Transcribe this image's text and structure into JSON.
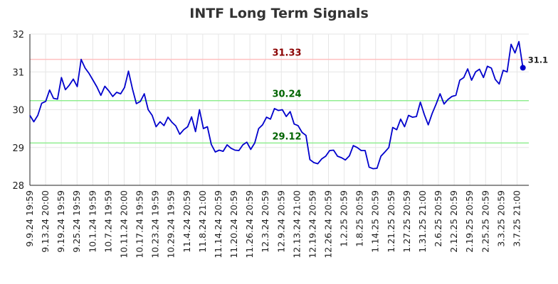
{
  "chart_data": {
    "type": "line",
    "title": "INTF Long Term Signals",
    "xlabel": "",
    "ylabel": "",
    "ylim": [
      28,
      32
    ],
    "y_ticks": [
      28,
      29,
      30,
      31,
      32
    ],
    "grid": true,
    "x_tick_labels": [
      "9.9.24 19:59",
      "9.13.24 20:00",
      "9.19.24 19:59",
      "9.25.24 19:59",
      "10.1.24 19:59",
      "10.7.24 19:59",
      "10.11.24 20:00",
      "10.17.24 19:59",
      "10.23.24 19:59",
      "10.29.24 19:59",
      "11.4.24 20:59",
      "11.8.24 21:00",
      "11.14.24 20:59",
      "11.20.24 20:59",
      "11.26.24 20:59",
      "12.3.24 20:59",
      "12.9.24 20:59",
      "12.13.24 21:00",
      "12.19.24 20:59",
      "12.26.24 20:59",
      "1.2.25 20:59",
      "1.8.25 20:59",
      "1.14.25 20:59",
      "1.21.25 20:59",
      "1.27.25 20:59",
      "1.31.25 21:00",
      "2.6.25 20:59",
      "2.12.25 20:59",
      "2.19.25 20:59",
      "2.25.25 20:59",
      "3.3.25 20:59",
      "3.7.25 21:00"
    ],
    "series": [
      {
        "values": [
          29.85,
          29.68,
          29.85,
          30.17,
          30.22,
          30.52,
          30.3,
          30.28,
          30.85,
          30.53,
          30.65,
          30.81,
          30.61,
          31.33,
          31.1,
          30.96,
          30.78,
          30.6,
          30.38,
          30.62,
          30.5,
          30.35,
          30.46,
          30.42,
          30.59,
          31.02,
          30.55,
          30.16,
          30.22,
          30.42,
          30.0,
          29.85,
          29.55,
          29.68,
          29.58,
          29.8,
          29.67,
          29.57,
          29.35,
          29.47,
          29.55,
          29.81,
          29.42,
          30.0,
          29.5,
          29.55,
          29.08,
          28.88,
          28.93,
          28.9,
          29.07,
          28.98,
          28.93,
          28.92,
          29.07,
          29.14,
          28.95,
          29.12,
          29.5,
          29.6,
          29.8,
          29.75,
          30.03,
          29.98,
          30.0,
          29.82,
          29.95,
          29.62,
          29.58,
          29.4,
          29.32,
          28.68,
          28.6,
          28.57,
          28.7,
          28.77,
          28.92,
          28.93,
          28.77,
          28.73,
          28.67,
          28.78,
          29.05,
          29.0,
          28.92,
          28.92,
          28.48,
          28.44,
          28.45,
          28.77,
          28.88,
          29.0,
          29.53,
          29.47,
          29.75,
          29.55,
          29.85,
          29.8,
          29.82,
          30.2,
          29.87,
          29.6,
          29.9,
          30.15,
          30.42,
          30.15,
          30.27,
          30.35,
          30.38,
          30.78,
          30.85,
          31.08,
          30.78,
          31.0,
          31.07,
          30.85,
          31.15,
          31.1,
          30.8,
          30.68,
          31.04,
          31.0,
          31.73,
          31.5,
          31.8,
          31.11
        ]
      }
    ],
    "annotations": {
      "resistance": {
        "value": 31.33,
        "label": "31.33",
        "line_color": "#ffc0c0",
        "text_color": "#8b0000"
      },
      "support_high": {
        "value": 30.24,
        "label": "30.24",
        "line_color": "#90ee90",
        "text_color": "#006400"
      },
      "support_low": {
        "value": 29.12,
        "label": "29.12",
        "line_color": "#90ee90",
        "text_color": "#006400"
      },
      "last_value_label": "31.1"
    },
    "colors": {
      "line": "#0000cc",
      "grid": "#e6e6e6",
      "axis": "#222222"
    }
  }
}
